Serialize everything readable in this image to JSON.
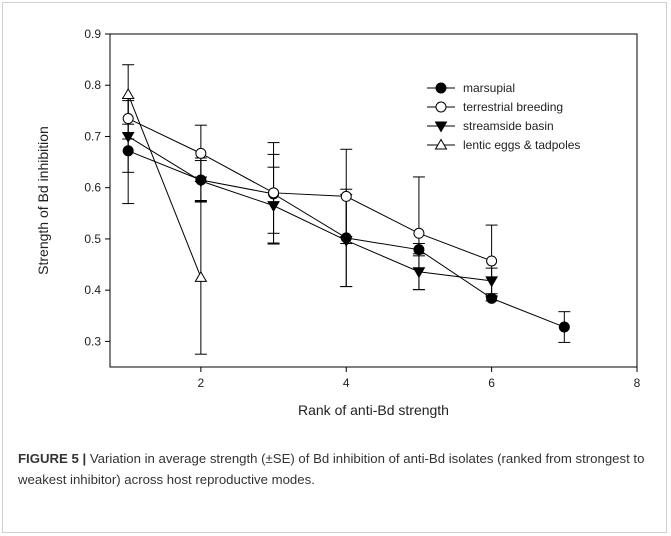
{
  "chart_data": {
    "type": "line",
    "xlabel": "Rank of anti-Bd strength",
    "ylabel": "Strength of Bd inhibition",
    "xlim": [
      0.75,
      8
    ],
    "ylim": [
      0.25,
      0.9
    ],
    "x_ticks": [
      2,
      4,
      6,
      8
    ],
    "y_ticks": [
      0.3,
      0.4,
      0.5,
      0.6,
      0.7,
      0.8,
      0.9
    ],
    "grid": false,
    "legend_position": "top-right",
    "series": [
      {
        "name": "marsupial",
        "marker": "filled-circle",
        "x": [
          1,
          2,
          3,
          4,
          5,
          6,
          7
        ],
        "y": [
          0.672,
          0.615,
          0.588,
          0.502,
          0.479,
          0.384,
          0.328
        ],
        "err": [
          0.103,
          0.043,
          0.077,
          0.095,
          0.012,
          0.005,
          0.03
        ]
      },
      {
        "name": "terrestrial breeding",
        "marker": "open-circle",
        "x": [
          1,
          2,
          3,
          4,
          5,
          6
        ],
        "y": [
          0.735,
          0.667,
          0.59,
          0.583,
          0.511,
          0.457
        ],
        "err": [
          0.04,
          0.055,
          0.098,
          0.092,
          0.11,
          0.07
        ]
      },
      {
        "name": "streamside basin",
        "marker": "filled-triangle-down",
        "x": [
          1,
          2,
          3,
          4,
          5,
          6
        ],
        "y": [
          0.7,
          0.613,
          0.565,
          0.497,
          0.436,
          0.418
        ],
        "err": [
          0.07,
          0.04,
          0.075,
          0.09,
          0.035,
          0.025
        ]
      },
      {
        "name": "lentic eggs & tadpoles",
        "marker": "open-triangle-up",
        "x": [
          1,
          2
        ],
        "y": [
          0.782,
          0.425
        ],
        "err": [
          0.058,
          0.15
        ]
      }
    ]
  },
  "caption": {
    "label": "FIGURE 5 |",
    "text": " Variation in average strength (±SE) of Bd inhibition of anti-Bd isolates (ranked from strongest to weakest inhibitor) across host reproductive modes."
  }
}
